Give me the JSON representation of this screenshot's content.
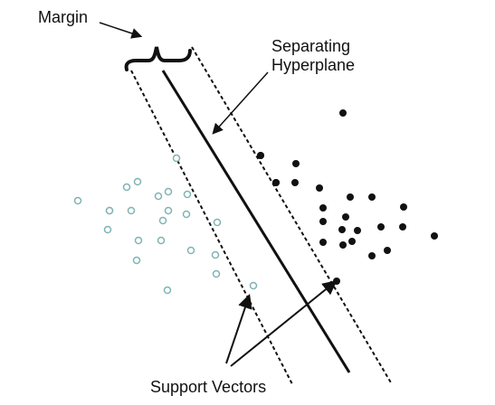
{
  "labels": {
    "margin": "Margin",
    "hyperplane_line1": "Separating",
    "hyperplane_line2": "Hyperplane",
    "support_vectors": "Support Vectors"
  },
  "colors": {
    "hollow_point_stroke": "#7fb3b3",
    "solid_point_fill": "#111111",
    "line": "#111111"
  },
  "classes": [
    {
      "style": "hollow",
      "count": 23
    },
    {
      "style": "solid",
      "count": 25
    }
  ]
}
